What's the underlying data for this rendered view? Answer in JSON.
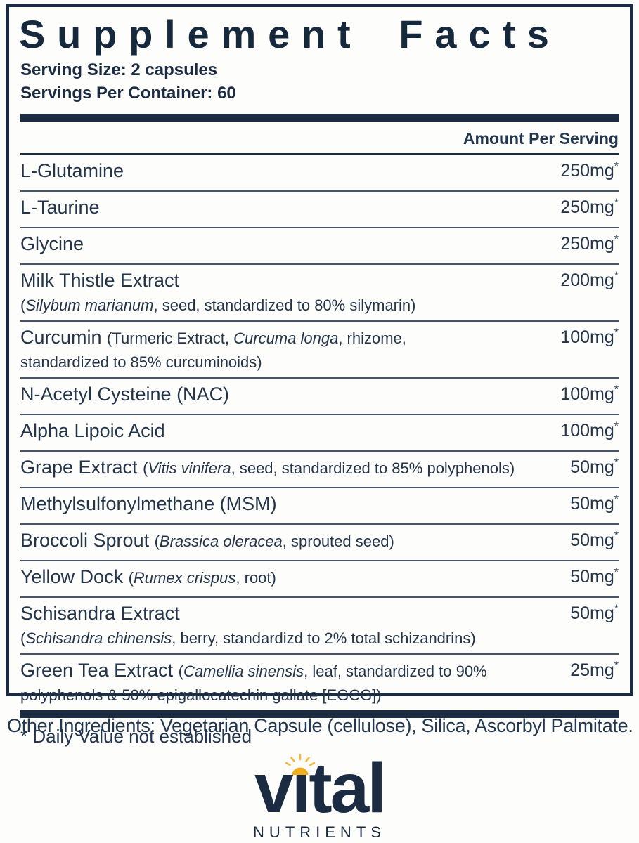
{
  "colors": {
    "brand_navy": "#1b2c42",
    "sun_gold": "#f0ad1e",
    "sun_ray_gold": "#f3b83a"
  },
  "label": {
    "title": "Supplement Facts",
    "serving_size": "Serving Size: 2 capsules",
    "servings_per_container": "Servings Per Container: 60",
    "column_header": "Amount Per Serving",
    "footnote": "* Daily Value not established",
    "rows": [
      {
        "main": [
          {
            "text": "L-Glutamine",
            "kind": "name"
          }
        ],
        "amount": "250mg",
        "note": "*"
      },
      {
        "main": [
          {
            "text": "L-Taurine",
            "kind": "name"
          }
        ],
        "amount": "250mg",
        "note": "*"
      },
      {
        "main": [
          {
            "text": "Glycine",
            "kind": "name"
          }
        ],
        "amount": "250mg",
        "note": "*"
      },
      {
        "main": [
          {
            "text": "Milk Thistle Extract",
            "kind": "name"
          }
        ],
        "sub": [
          {
            "text": "(",
            "kind": "detail"
          },
          {
            "text": "Silybum marianum",
            "kind": "italic"
          },
          {
            "text": ", seed, standardized to 80% silymarin)",
            "kind": "detail"
          }
        ],
        "amount": "200mg",
        "note": "*"
      },
      {
        "main": [
          {
            "text": "Curcumin ",
            "kind": "name"
          },
          {
            "text": "(Turmeric Extract, ",
            "kind": "detail"
          },
          {
            "text": "Curcuma longa",
            "kind": "italic"
          },
          {
            "text": ", rhizome,",
            "kind": "detail"
          }
        ],
        "sub": [
          {
            "text": "standardized to 85% curcuminoids)",
            "kind": "detail"
          }
        ],
        "amount": "100mg",
        "note": "*"
      },
      {
        "main": [
          {
            "text": "N-Acetyl Cysteine (NAC)",
            "kind": "name"
          }
        ],
        "amount": "100mg",
        "note": "*"
      },
      {
        "main": [
          {
            "text": "Alpha Lipoic Acid",
            "kind": "name"
          }
        ],
        "amount": "100mg",
        "note": "*"
      },
      {
        "main": [
          {
            "text": "Grape Extract ",
            "kind": "name"
          },
          {
            "text": "(",
            "kind": "detail"
          },
          {
            "text": "Vitis vinifera",
            "kind": "italic"
          },
          {
            "text": ", seed, standardized to 85% polyphenols)",
            "kind": "detail"
          }
        ],
        "amount": "50mg",
        "note": "*"
      },
      {
        "main": [
          {
            "text": "Methylsulfonylmethane (MSM)",
            "kind": "name"
          }
        ],
        "amount": "50mg",
        "note": "*"
      },
      {
        "main": [
          {
            "text": "Broccoli Sprout ",
            "kind": "name"
          },
          {
            "text": "(",
            "kind": "detail"
          },
          {
            "text": "Brassica oleracea",
            "kind": "italic"
          },
          {
            "text": ", sprouted seed)",
            "kind": "detail"
          }
        ],
        "amount": "50mg",
        "note": "*"
      },
      {
        "main": [
          {
            "text": "Yellow Dock ",
            "kind": "name"
          },
          {
            "text": "(",
            "kind": "detail"
          },
          {
            "text": "Rumex crispus",
            "kind": "italic"
          },
          {
            "text": ", root)",
            "kind": "detail"
          }
        ],
        "amount": "50mg",
        "note": "*"
      },
      {
        "main": [
          {
            "text": "Schisandra Extract",
            "kind": "name"
          }
        ],
        "sub": [
          {
            "text": "(",
            "kind": "detail"
          },
          {
            "text": "Schisandra chinensis",
            "kind": "italic"
          },
          {
            "text": ", berry, standardizd to 2% total schizandrins)",
            "kind": "detail"
          }
        ],
        "amount": "50mg",
        "note": "*"
      },
      {
        "main": [
          {
            "text": "Green Tea Extract ",
            "kind": "name"
          },
          {
            "text": "(",
            "kind": "detail"
          },
          {
            "text": "Camellia sinensis",
            "kind": "italic"
          },
          {
            "text": ", leaf, standardized to 90%",
            "kind": "detail"
          }
        ],
        "sub": [
          {
            "text": "polyphenols & 50% epigallocatechin gallate [EGCG])",
            "kind": "detail"
          }
        ],
        "amount": "25mg",
        "note": "*"
      }
    ]
  },
  "other_ingredients": "Other Ingredients: Vegetarian Capsule (cellulose), Silica, Ascorbyl Palmitate.",
  "brand": {
    "logo_text": "vital",
    "word_parts": {
      "pre": "v",
      "i": "ı",
      "post": "tal"
    },
    "subtext": "NUTRIENTS"
  }
}
